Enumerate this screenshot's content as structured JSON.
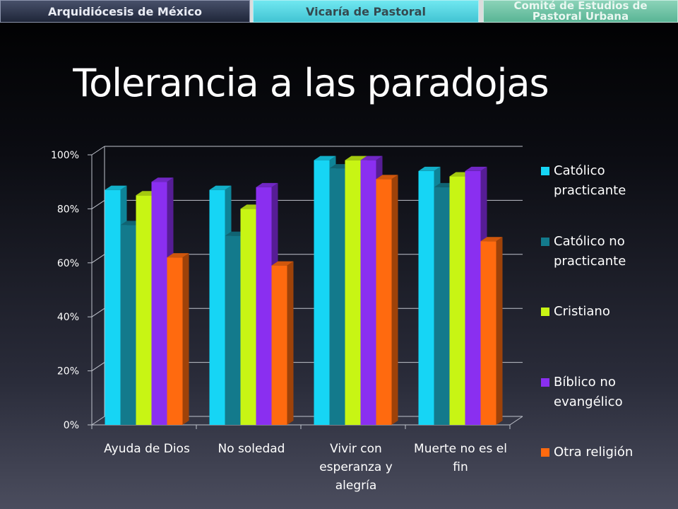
{
  "header": {
    "tab1": "Arquidiócesis de México",
    "tab2": "Vicaría de Pastoral",
    "tab3_line1": "Comité de Estudios de",
    "tab3_line2": "Pastoral Urbana"
  },
  "slide_title": "Tolerancia a las paradojas",
  "chart_data": {
    "type": "bar",
    "title": "",
    "xlabel": "",
    "ylabel": "",
    "ylim": [
      0,
      100
    ],
    "yticks": [
      "0%",
      "20%",
      "40%",
      "60%",
      "80%",
      "100%"
    ],
    "categories": [
      "Ayuda de Dios",
      "No soledad",
      "Vivir con esperanza y alegría",
      "Muerte no es el fin"
    ],
    "series": [
      {
        "name": "Católico practicante",
        "color": "#16d5f5",
        "values": [
          87,
          87,
          98,
          94
        ]
      },
      {
        "name": "Católico no practicante",
        "color": "#137a8c",
        "values": [
          74,
          70,
          95,
          88
        ]
      },
      {
        "name": "Cristiano",
        "color": "#c8f514",
        "values": [
          85,
          80,
          98,
          92
        ]
      },
      {
        "name": "Bíblico no evangélico",
        "color": "#8a2ff0",
        "values": [
          90,
          88,
          98,
          94
        ]
      },
      {
        "name": "Otra religión",
        "color": "#ff6a0f",
        "values": [
          62,
          59,
          91,
          68
        ]
      }
    ],
    "grid": true,
    "legend_position": "right"
  }
}
